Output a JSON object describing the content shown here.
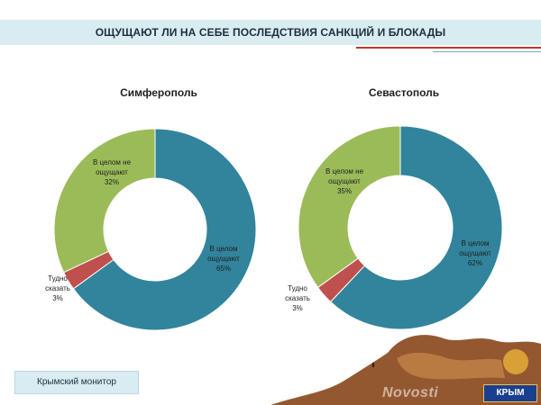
{
  "header": {
    "title": "ОЩУЩАЮТ ЛИ НА СЕБЕ ПОСЛЕДСТВИЯ САНКЦИЙ И БЛОКАДЫ"
  },
  "footer": {
    "label": "Крымский монитор"
  },
  "watermark": {
    "site_text": "Novosti",
    "logo_text": "КРЫМ"
  },
  "chart_data": [
    {
      "type": "pie",
      "title": "Симферополь",
      "slices": [
        {
          "label_lines": [
            "В целом",
            "ощущают",
            "65%"
          ],
          "value": 65,
          "color": "#31849b"
        },
        {
          "label_lines": [
            "Тудно",
            "сказать",
            "3%"
          ],
          "value": 3,
          "color": "#c0504d"
        },
        {
          "label_lines": [
            "В целом не",
            "ощущают",
            "32%"
          ],
          "value": 32,
          "color": "#9bbb59"
        }
      ]
    },
    {
      "type": "pie",
      "title": "Севастополь",
      "slices": [
        {
          "label_lines": [
            "В целом",
            "ощущают",
            "62%"
          ],
          "value": 62,
          "color": "#31849b"
        },
        {
          "label_lines": [
            "Тудно",
            "сказать",
            "3%"
          ],
          "value": 3,
          "color": "#c0504d"
        },
        {
          "label_lines": [
            "В целом не",
            "ощущают",
            "35%"
          ],
          "value": 35,
          "color": "#9bbb59"
        }
      ]
    }
  ]
}
